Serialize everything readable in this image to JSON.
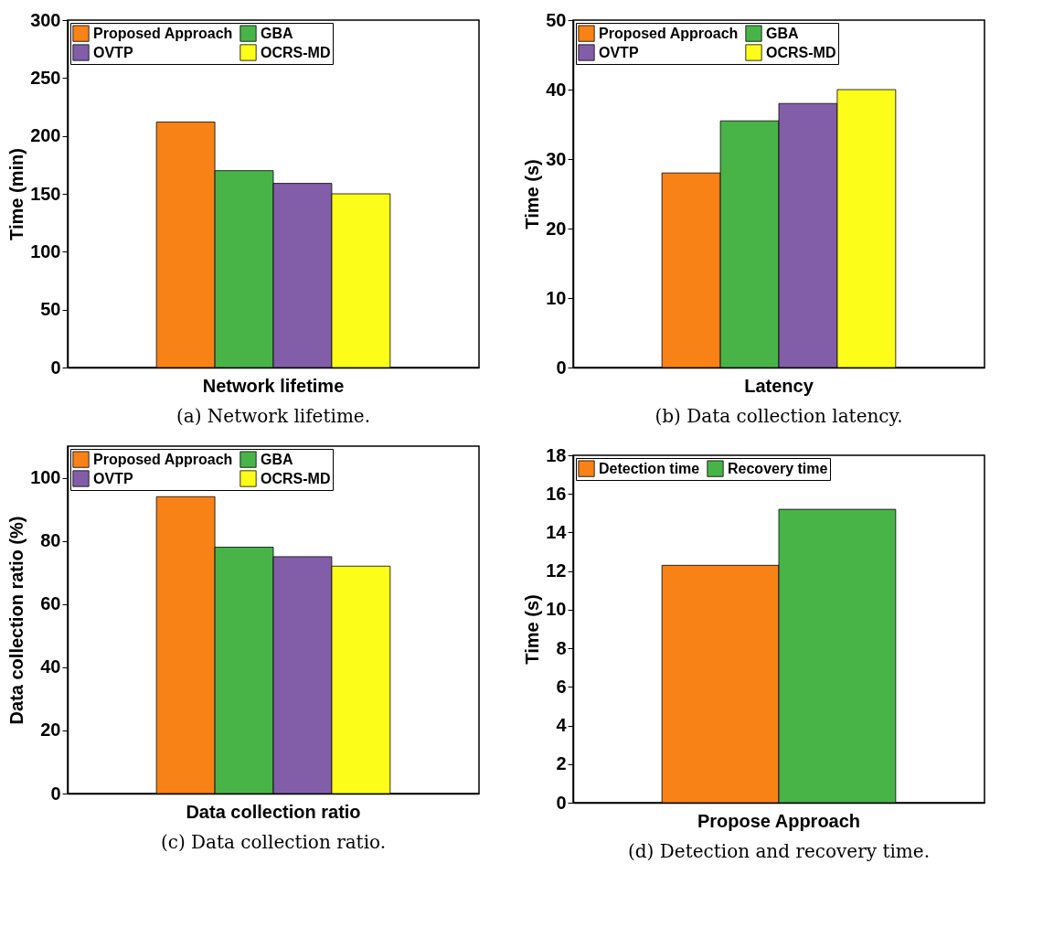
{
  "chart_data": [
    {
      "type": "bar",
      "categories": [
        "Network lifetime"
      ],
      "ylabel": "Time (min)",
      "ylim": [
        0,
        300
      ],
      "yticks": [
        0,
        50,
        100,
        150,
        200,
        250,
        300
      ],
      "legend": "top left",
      "annotations": [
        "(a) Network lifetime."
      ],
      "series": [
        {
          "name": "Proposed Approach",
          "color": "#f88216",
          "values": [
            212
          ]
        },
        {
          "name": "GBA",
          "color": "#48b448",
          "values": [
            170
          ]
        },
        {
          "name": "OVTP",
          "color": "#835ea8",
          "values": [
            159
          ]
        },
        {
          "name": "OCRS-MD",
          "color": "#fdfd1a",
          "values": [
            150
          ]
        }
      ]
    },
    {
      "type": "bar",
      "categories": [
        "Latency"
      ],
      "ylabel": "Time (s)",
      "ylim": [
        0,
        50
      ],
      "yticks": [
        0,
        10,
        20,
        30,
        40,
        50
      ],
      "legend": "top left",
      "annotations": [
        "(b) Data collection latency."
      ],
      "series": [
        {
          "name": "Proposed Approach",
          "color": "#f88216",
          "values": [
            28
          ]
        },
        {
          "name": "GBA",
          "color": "#48b448",
          "values": [
            35.5
          ]
        },
        {
          "name": "OVTP",
          "color": "#835ea8",
          "values": [
            38
          ]
        },
        {
          "name": "OCRS-MD",
          "color": "#fdfd1a",
          "values": [
            40
          ]
        }
      ]
    },
    {
      "type": "bar",
      "categories": [
        "Data collection ratio"
      ],
      "ylabel": "Data collection ratio (%)",
      "ylim": [
        0,
        110
      ],
      "yticks": [
        0,
        20,
        40,
        60,
        80,
        100
      ],
      "legend": "top left",
      "annotations": [
        "(c) Data collection ratio."
      ],
      "series": [
        {
          "name": "Proposed Approach",
          "color": "#f88216",
          "values": [
            94
          ]
        },
        {
          "name": "GBA",
          "color": "#48b448",
          "values": [
            78
          ]
        },
        {
          "name": "OVTP",
          "color": "#835ea8",
          "values": [
            75
          ]
        },
        {
          "name": "OCRS-MD",
          "color": "#fdfd1a",
          "values": [
            72
          ]
        }
      ]
    },
    {
      "type": "bar",
      "categories": [
        "Propose Approach"
      ],
      "ylabel": "Time (s)",
      "ylim": [
        0,
        18
      ],
      "yticks": [
        0,
        2,
        4,
        6,
        8,
        10,
        12,
        14,
        16,
        18
      ],
      "legend": "top left",
      "annotations": [
        "(d) Detection and recovery time."
      ],
      "series": [
        {
          "name": "Detection time",
          "color": "#f88216",
          "values": [
            12.3
          ]
        },
        {
          "name": "Recovery time",
          "color": "#48b448",
          "values": [
            15.2
          ]
        }
      ]
    }
  ]
}
